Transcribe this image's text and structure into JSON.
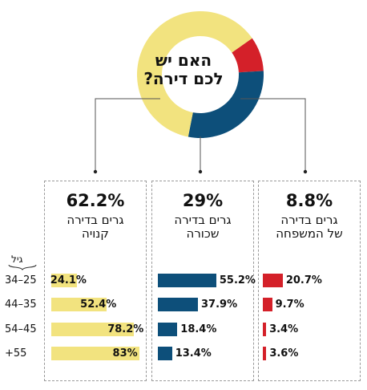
{
  "question": [
    "האם יש",
    "לכם דירה?"
  ],
  "age_header": "גיל",
  "age_groups": [
    "34–25",
    "44–35",
    "54–45",
    "+55"
  ],
  "colors": {
    "owned": "#f2e37f",
    "rented": "#0d4f7a",
    "family": "#d42029"
  },
  "chart_data": {
    "type": "pie",
    "slices": [
      {
        "label": "גרים בדירה קנויה",
        "value": 62.2,
        "color": "#f2e37f"
      },
      {
        "label": "גרים בדירה שכורה",
        "value": 29,
        "color": "#0d4f7a"
      },
      {
        "label": "גרים בדירה של המשפחה",
        "value": 8.8,
        "color": "#d42029"
      }
    ],
    "breakdown": {
      "type": "bar",
      "categories": [
        "34–25",
        "44–35",
        "54–45",
        "+55"
      ],
      "series": [
        {
          "name": "גרים בדירה קנויה",
          "values": [
            24.1,
            52.4,
            78.2,
            83
          ]
        },
        {
          "name": "גרים בדירה שכורה",
          "values": [
            55.2,
            37.9,
            18.4,
            13.4
          ]
        },
        {
          "name": "גרים בדירה של המשפחה",
          "values": [
            20.7,
            9.7,
            3.4,
            3.6
          ]
        }
      ]
    }
  },
  "panels": [
    {
      "key": "owned",
      "pct": "62.2%",
      "label": [
        "גרים בדירה",
        "קנויה"
      ],
      "values": [
        "24.1%",
        "52.4%",
        "78.2%",
        "83%"
      ]
    },
    {
      "key": "rented",
      "pct": "29%",
      "label": [
        "גרים בדירה",
        "שכורה"
      ],
      "values": [
        "55.2%",
        "37.9%",
        "18.4%",
        "13.4%"
      ]
    },
    {
      "key": "family",
      "pct": "8.8%",
      "label": [
        "גרים בדירה",
        "של המשפחה"
      ],
      "values": [
        "20.7%",
        "9.7%",
        "3.4%",
        "3.6%"
      ]
    }
  ]
}
